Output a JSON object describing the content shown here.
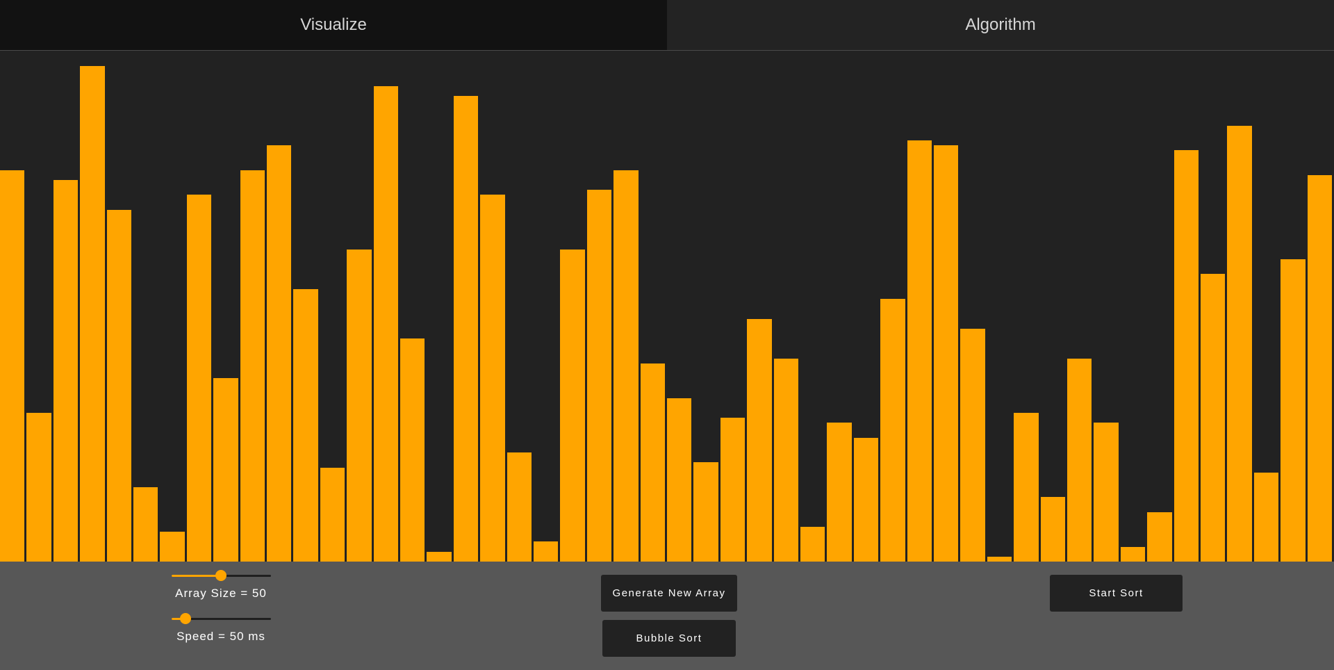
{
  "tabs": [
    {
      "label": "Visualize",
      "active": true
    },
    {
      "label": "Algorithm",
      "active": false
    }
  ],
  "colors": {
    "bar": "#ffa500",
    "background": "#222222",
    "control_panel": "#575757",
    "button": "#222222"
  },
  "bars": {
    "max_value": 100,
    "values": [
      79,
      30,
      77,
      100,
      71,
      15,
      6,
      74,
      37,
      79,
      84,
      55,
      19,
      63,
      96,
      45,
      2,
      94,
      74,
      22,
      4,
      63,
      75,
      79,
      40,
      33,
      20,
      29,
      49,
      41,
      7,
      28,
      25,
      53,
      85,
      84,
      47,
      1,
      30,
      13,
      41,
      28,
      3,
      10,
      83,
      58,
      88,
      18,
      61,
      78
    ]
  },
  "controls": {
    "array_size": {
      "label": "Array Size = 50",
      "fraction": 0.5
    },
    "speed": {
      "label": "Speed = 50 ms",
      "fraction": 0.14
    },
    "generate_label": "Generate New Array",
    "algorithm_label": "Bubble Sort",
    "start_label": "Start Sort"
  }
}
